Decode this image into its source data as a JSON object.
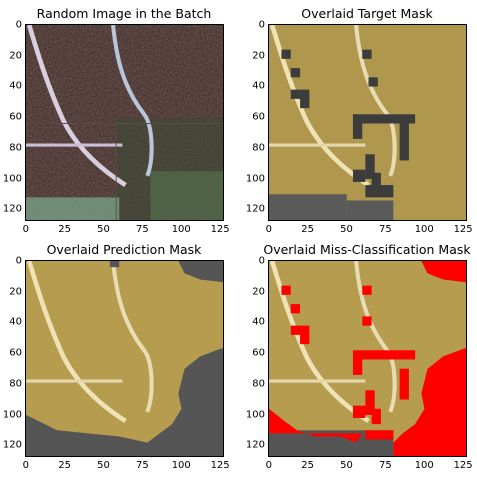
{
  "panels": [
    {
      "title": "Random Image in the Batch"
    },
    {
      "title": "Overlaid Target Mask"
    },
    {
      "title": "Overlaid Prediction Mask"
    },
    {
      "title": "Overlaid Miss-Classification Mask"
    }
  ],
  "axes": {
    "y_ticks": [
      "0",
      "20",
      "40",
      "60",
      "80",
      "100",
      "120"
    ],
    "x_ticks": [
      "0",
      "25",
      "50",
      "75",
      "100",
      "125"
    ]
  },
  "colors": {
    "overlay_yellow": "#b89a3a",
    "misclass_red": "#ff0000",
    "background_gray": "#4a4a4a",
    "road_light": "#e6d7a8"
  }
}
